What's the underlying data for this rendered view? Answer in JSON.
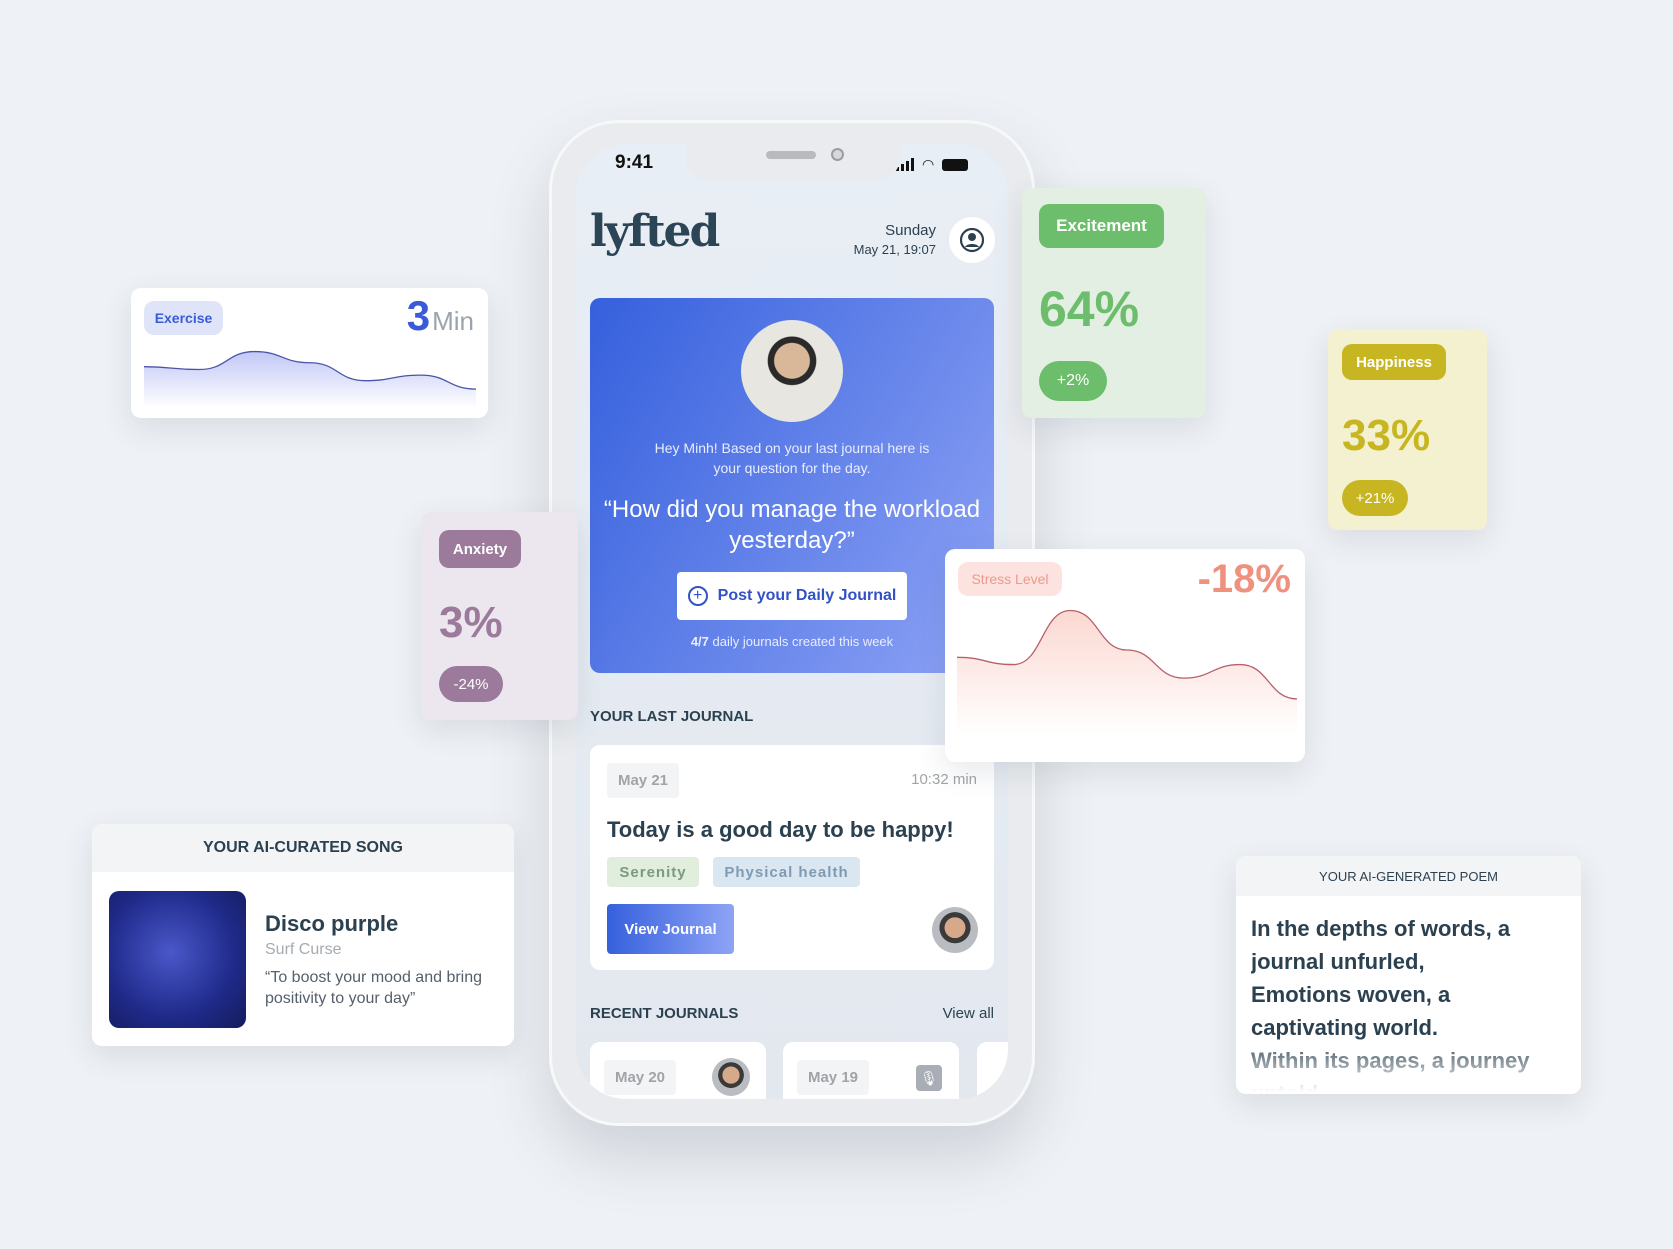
{
  "status": {
    "time": "9:41"
  },
  "app": {
    "logo": "lyfted",
    "day": "Sunday",
    "datetime": "May 21, 19:07",
    "profile_icon": "user-circle-icon"
  },
  "prompt_card": {
    "greeting": "Hey Minh! Based on your last journal here is",
    "greeting2": "your question for the day.",
    "question1": "“How did you manage the workload",
    "question2": "yesterday?”",
    "button": "Post your Daily Journal",
    "progress_count": "4/7",
    "progress_text": " daily journals created this week"
  },
  "last_journal": {
    "heading": "YOUR LAST JOURNAL",
    "date": "May 21",
    "duration": "10:32 min",
    "title": "Today is a good day to be happy!",
    "tags": [
      "Serenity",
      "Physical health"
    ],
    "button": "View Journal"
  },
  "recent": {
    "heading": "RECENT JOURNALS",
    "view_all": "View all",
    "items": [
      {
        "date": "May 20",
        "type": "video"
      },
      {
        "date": "May 19",
        "type": "audio"
      }
    ]
  },
  "excitement": {
    "label": "Excitement",
    "value": "64%",
    "change": "+2%",
    "color": "#6cbd6c"
  },
  "happiness": {
    "label": "Happiness",
    "value": "33%",
    "change": "+21%",
    "color": "#c7b621"
  },
  "anxiety": {
    "label": "Anxiety",
    "value": "3%",
    "change": "-24%",
    "color": "#9b7a9b"
  },
  "exercise": {
    "label": "Exercise",
    "value": "3",
    "unit": "Min",
    "color": "#3a5bd9",
    "trend": [
      0.55,
      0.5,
      0.82,
      0.62,
      0.3,
      0.4,
      0.15
    ]
  },
  "stress": {
    "label": "Stress Level",
    "value": "-18%",
    "color": "#f0907e",
    "trend": [
      0.55,
      0.48,
      1.0,
      0.62,
      0.35,
      0.48,
      0.15
    ]
  },
  "song": {
    "heading": "YOUR AI-CURATED SONG",
    "title": "Disco purple",
    "artist": "Surf Curse",
    "reason": "“To boost your mood and bring positivity to your day”"
  },
  "poem": {
    "heading": "YOUR AI-GENERATED POEM",
    "lines": [
      "In the depths of words, a",
      "journal unfurled,",
      "Emotions woven, a",
      "captivating world.",
      "Within its pages, a journey",
      "untold"
    ]
  }
}
